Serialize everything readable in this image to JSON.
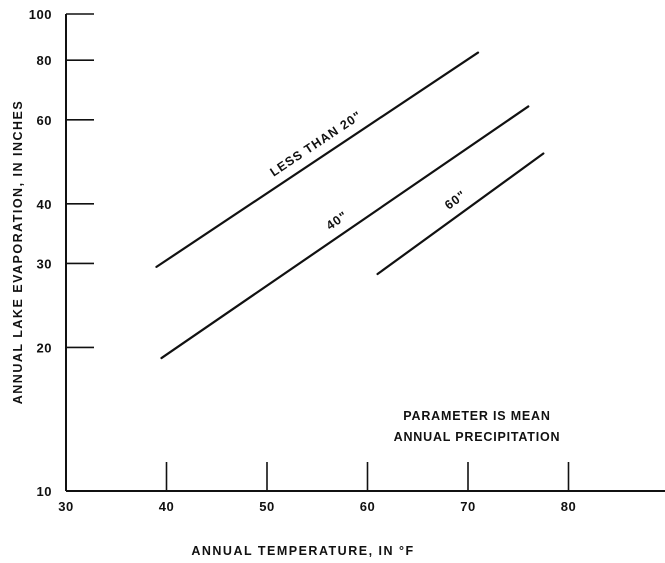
{
  "chart_data": {
    "type": "line",
    "xlabel": "ANNUAL TEMPERATURE, IN °F",
    "ylabel": "ANNUAL LAKE EVAPORATION, IN INCHES",
    "xlim": [
      30,
      90
    ],
    "ylim": [
      10,
      100
    ],
    "y_scale": "log",
    "x_ticks": [
      30,
      40,
      50,
      60,
      70,
      80
    ],
    "x_tick_labels": [
      "30",
      "40",
      "50",
      "60",
      "70",
      "80"
    ],
    "y_ticks": [
      10,
      20,
      30,
      40,
      60,
      80,
      100
    ],
    "y_tick_labels": [
      "10",
      "20",
      "30",
      "40",
      "60",
      "80",
      "100"
    ],
    "grid": false,
    "series": [
      {
        "name": "LESS THAN 20\"",
        "x": [
          39,
          71
        ],
        "y": [
          29.5,
          83
        ]
      },
      {
        "name": "40\"",
        "x": [
          39.5,
          76
        ],
        "y": [
          19,
          64
        ]
      },
      {
        "name": "60\"",
        "x": [
          61,
          77.5
        ],
        "y": [
          28.5,
          51
        ]
      }
    ],
    "annotation": {
      "lines": [
        "PARAMETER IS MEAN",
        "ANNUAL PRECIPITATION"
      ]
    }
  }
}
